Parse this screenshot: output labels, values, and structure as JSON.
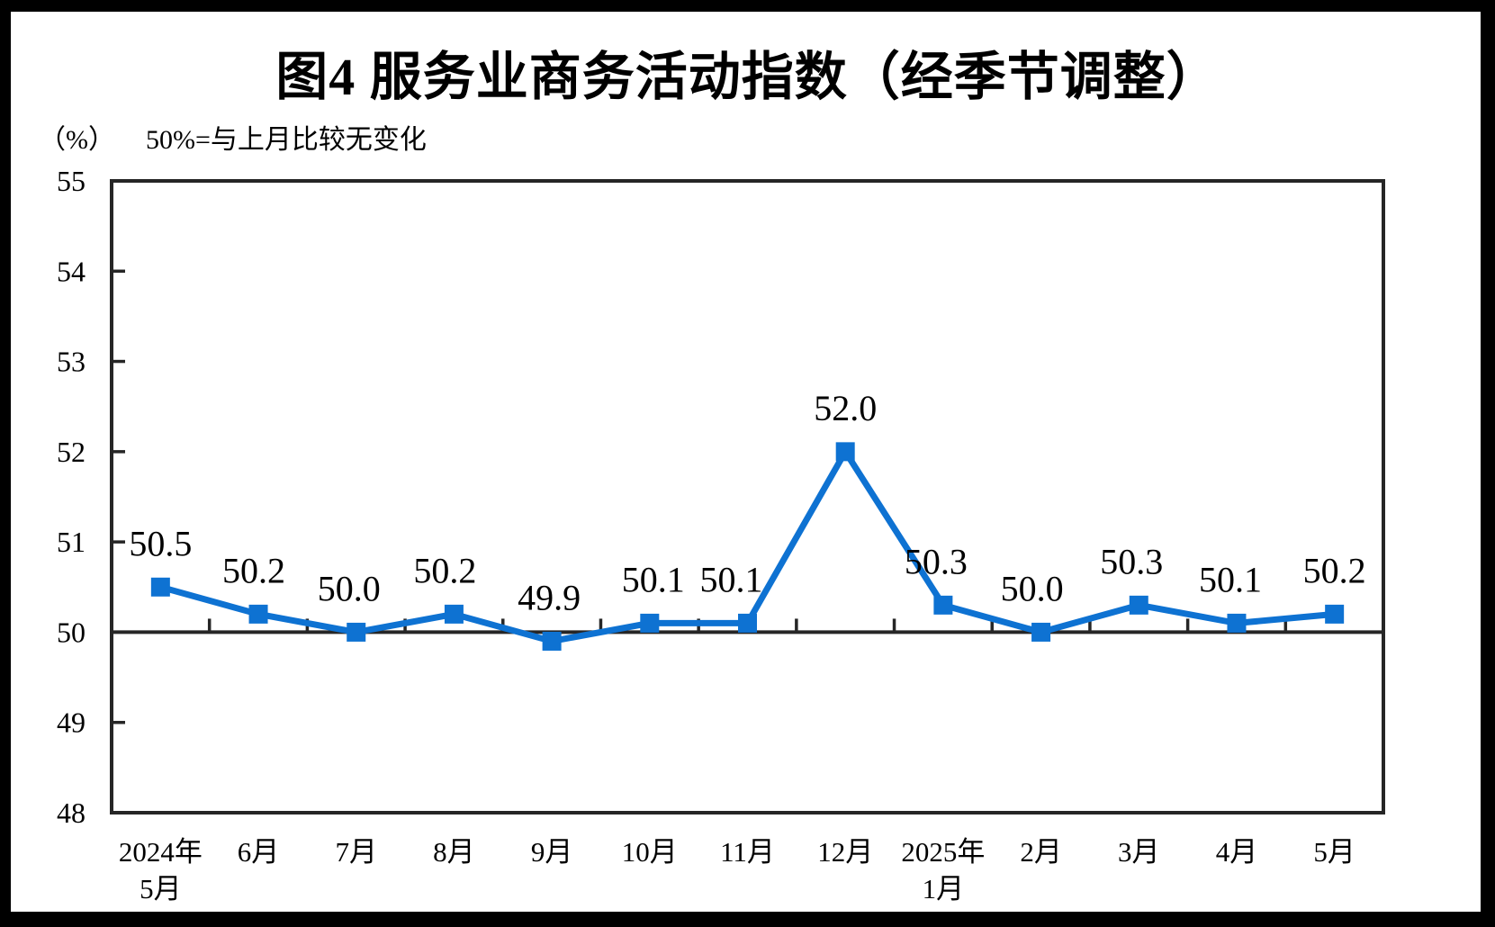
{
  "frame": {
    "color": "#000000",
    "background": "#ffffff"
  },
  "chart_data": {
    "type": "line",
    "title": "图4  服务业商务活动指数（经季节调整）",
    "unit_label": "（%）",
    "note": "50%=与上月比较无变化",
    "categories": [
      [
        "2024年",
        "5月"
      ],
      [
        "6月"
      ],
      [
        "7月"
      ],
      [
        "8月"
      ],
      [
        "9月"
      ],
      [
        "10月"
      ],
      [
        "11月"
      ],
      [
        "12月"
      ],
      [
        "2025年",
        "1月"
      ],
      [
        "2月"
      ],
      [
        "3月"
      ],
      [
        "4月"
      ],
      [
        "5月"
      ]
    ],
    "values": [
      50.5,
      50.2,
      50.0,
      50.2,
      49.9,
      50.1,
      50.1,
      52.0,
      50.3,
      50.0,
      50.3,
      50.1,
      50.2
    ],
    "labels": [
      "50.5",
      "50.2",
      "50.0",
      "50.2",
      "49.9",
      "50.1",
      "50.1",
      "52.0",
      "50.3",
      "50.0",
      "50.3",
      "50.1",
      "50.2"
    ],
    "yticks": [
      48,
      49,
      50,
      51,
      52,
      53,
      54,
      55
    ],
    "ylim": [
      48,
      55
    ],
    "baseline": 50,
    "grid": "off",
    "legend": "none",
    "series_color": "#0E72D2",
    "axis_color": "#262626",
    "label_dx": [
      0,
      -5,
      -8,
      -10,
      -3,
      4,
      -18,
      0,
      -8,
      -10,
      -8,
      -7,
      0
    ],
    "label_dy": -48
  }
}
